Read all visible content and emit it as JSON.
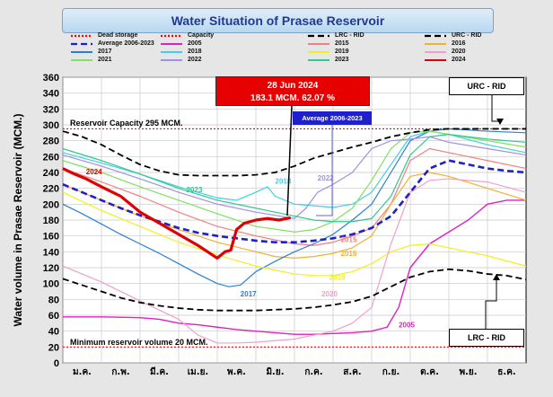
{
  "chart_data": {
    "type": "line",
    "title": "Water Situation of Prasae Reservoir",
    "ylabel": "Water volume in Prasae Reservoir (MCM.)",
    "xlabel": "",
    "ylim": [
      0,
      360
    ],
    "yticks": [
      0,
      20,
      40,
      60,
      80,
      100,
      120,
      140,
      160,
      180,
      200,
      220,
      240,
      260,
      280,
      300,
      320,
      340,
      360
    ],
    "categories": [
      "ม.ค.",
      "ก.พ.",
      "มี.ค.",
      "เม.ย.",
      "พ.ค.",
      "มิ.ย.",
      "ก.ค.",
      "ส.ค.",
      "ก.ย.",
      "ต.ค.",
      "พ.ย.",
      "ธ.ค."
    ],
    "grid": true,
    "annotations": {
      "capacity_label": "Reservoir Capacity 295 MCM.",
      "min_label": "Minimum reservoir volume 20 MCM.",
      "callout_line1": "28 Jun 2024",
      "callout_line2": "183.1 MCM. 62.07 %",
      "avg_label": "Average 2006-2023",
      "urc_label": "URC - RID",
      "lrc_label": "LRC - RID"
    },
    "legend": [
      {
        "name": "Dead storage",
        "color": "#ff0000",
        "style": "dotted"
      },
      {
        "name": "Capacity",
        "color": "#ff0000",
        "style": "dotted"
      },
      {
        "name": "LRC - RID",
        "color": "#000000",
        "style": "dashed"
      },
      {
        "name": "URC - RID",
        "color": "#000000",
        "style": "dashed"
      },
      {
        "name": "Average 2006-2023",
        "color": "#1f1fcc",
        "style": "dashed"
      },
      {
        "name": "2005",
        "color": "#e020c0",
        "style": "solid"
      },
      {
        "name": "2015",
        "color": "#f08080",
        "style": "solid"
      },
      {
        "name": "2016",
        "color": "#f0b030",
        "style": "solid"
      },
      {
        "name": "2017",
        "color": "#2a7fd4",
        "style": "solid"
      },
      {
        "name": "2018",
        "color": "#40d0e0",
        "style": "solid"
      },
      {
        "name": "2019",
        "color": "#f0f020",
        "style": "solid"
      },
      {
        "name": "2020",
        "color": "#f0a0c8",
        "style": "solid"
      },
      {
        "name": "2021",
        "color": "#80e060",
        "style": "solid"
      },
      {
        "name": "2022",
        "color": "#a090e0",
        "style": "solid"
      },
      {
        "name": "2023",
        "color": "#30c890",
        "style": "solid"
      },
      {
        "name": "2024",
        "color": "#e00000",
        "style": "solid"
      }
    ],
    "series": [
      {
        "name": "Dead storage",
        "color": "#ff0000",
        "style": "dotted",
        "width": 1.2,
        "label": "",
        "x": [
          0,
          12
        ],
        "y": [
          20,
          20
        ]
      },
      {
        "name": "Capacity",
        "color": "#ff0000",
        "style": "dotted",
        "width": 1.2,
        "label": "",
        "x": [
          0,
          12
        ],
        "y": [
          295,
          295
        ]
      },
      {
        "name": "URC - RID",
        "color": "#000000",
        "style": "dashed",
        "width": 1.8,
        "label": "",
        "x": [
          0,
          0.5,
          1,
          1.5,
          2,
          2.5,
          3,
          3.5,
          4,
          4.5,
          5,
          5.5,
          6,
          6.5,
          7,
          7.5,
          8,
          8.5,
          9,
          9.5,
          10,
          10.5,
          11,
          11.5,
          12
        ],
        "y": [
          292,
          285,
          275,
          262,
          250,
          242,
          237,
          236,
          236,
          236,
          237,
          240,
          248,
          258,
          265,
          272,
          278,
          285,
          290,
          294,
          295,
          295,
          295,
          295,
          295
        ]
      },
      {
        "name": "LRC - RID",
        "color": "#000000",
        "style": "dashed",
        "width": 1.8,
        "label": "",
        "x": [
          0,
          0.5,
          1,
          1.5,
          2,
          2.5,
          3,
          3.5,
          4,
          4.5,
          5,
          5.5,
          6,
          6.5,
          7,
          7.5,
          8,
          8.5,
          9,
          9.5,
          10,
          10.5,
          11,
          11.5,
          12
        ],
        "y": [
          106,
          98,
          90,
          82,
          76,
          72,
          69,
          67,
          66,
          66,
          66,
          67,
          68,
          70,
          73,
          77,
          84,
          96,
          108,
          115,
          118,
          116,
          112,
          110,
          105
        ]
      },
      {
        "name": "Average 2006-2023",
        "color": "#1f1fcc",
        "style": "dashed",
        "width": 2.6,
        "label": "",
        "x": [
          0,
          0.5,
          1,
          1.5,
          2,
          2.5,
          3,
          3.5,
          4,
          4.5,
          5,
          5.5,
          6,
          6.5,
          7,
          7.5,
          8,
          8.5,
          9,
          9.5,
          10,
          10.5,
          11,
          11.5,
          12
        ],
        "y": [
          225,
          215,
          205,
          195,
          186,
          178,
          170,
          164,
          160,
          157,
          154,
          152,
          152,
          154,
          157,
          162,
          170,
          185,
          215,
          245,
          255,
          250,
          245,
          242,
          240
        ]
      },
      {
        "name": "2005",
        "color": "#e020c0",
        "style": "solid",
        "width": 1.4,
        "label": "2005",
        "lx": 8.7,
        "ly": 45,
        "x": [
          0,
          1,
          2,
          2.5,
          3,
          3.5,
          4,
          4.5,
          5,
          5.5,
          6,
          6.5,
          7,
          7.5,
          8,
          8.4,
          8.7,
          9,
          9.5,
          10,
          10.5,
          11,
          11.5,
          12
        ],
        "y": [
          58,
          58,
          57,
          55,
          50,
          48,
          45,
          42,
          40,
          38,
          36,
          36,
          37,
          38,
          40,
          45,
          70,
          120,
          150,
          165,
          180,
          200,
          205,
          205
        ]
      },
      {
        "name": "2015",
        "color": "#f08080",
        "style": "solid",
        "width": 1.2,
        "label": "2015",
        "lx": 7.2,
        "ly": 152,
        "x": [
          0,
          1,
          2,
          3,
          4,
          5,
          6,
          6.5,
          7,
          7.5,
          8,
          8.5,
          9,
          9.5,
          10,
          11,
          12
        ],
        "y": [
          245,
          228,
          210,
          190,
          172,
          160,
          150,
          148,
          152,
          160,
          170,
          200,
          255,
          270,
          265,
          255,
          245
        ]
      },
      {
        "name": "2016",
        "color": "#f0b030",
        "style": "solid",
        "width": 1.2,
        "label": "2016",
        "lx": 7.2,
        "ly": 135,
        "x": [
          0,
          1,
          2,
          3,
          4,
          5,
          5.5,
          6,
          6.5,
          7,
          7.5,
          8,
          8.5,
          9,
          9.5,
          10,
          11,
          12
        ],
        "y": [
          225,
          205,
          185,
          168,
          152,
          140,
          134,
          132,
          134,
          138,
          145,
          160,
          200,
          235,
          240,
          235,
          220,
          205
        ]
      },
      {
        "name": "2017",
        "color": "#2a7fd4",
        "style": "solid",
        "width": 1.2,
        "label": "2017",
        "lx": 4.6,
        "ly": 84,
        "x": [
          0,
          0.5,
          1,
          1.5,
          2,
          2.5,
          3,
          3.5,
          4,
          4.3,
          4.6,
          5,
          5.5,
          6,
          6.5,
          7,
          7.5,
          8,
          8.5,
          9,
          9.5,
          10,
          11,
          12
        ],
        "y": [
          200,
          188,
          175,
          162,
          150,
          138,
          125,
          112,
          100,
          96,
          98,
          115,
          128,
          140,
          150,
          162,
          180,
          200,
          240,
          280,
          292,
          295,
          292,
          290
        ]
      },
      {
        "name": "2018",
        "color": "#40d0e0",
        "style": "solid",
        "width": 1.2,
        "label": "2018",
        "lx": 5.5,
        "ly": 226,
        "x": [
          0,
          1,
          2,
          3,
          4,
          4.5,
          5,
          5.3,
          5.5,
          6,
          6.5,
          7,
          7.5,
          8,
          8.5,
          9,
          9.5,
          10,
          11,
          12
        ],
        "y": [
          265,
          252,
          238,
          222,
          208,
          205,
          215,
          222,
          210,
          200,
          198,
          196,
          200,
          215,
          250,
          285,
          292,
          288,
          275,
          265
        ]
      },
      {
        "name": "2019",
        "color": "#f0f020",
        "style": "solid",
        "width": 1.2,
        "label": "2019",
        "lx": 6.9,
        "ly": 105,
        "x": [
          0,
          1,
          2,
          3,
          4,
          5,
          6,
          6.5,
          7,
          7.5,
          8,
          8.5,
          9,
          9.5,
          10,
          11,
          12
        ],
        "y": [
          215,
          192,
          172,
          152,
          136,
          122,
          112,
          110,
          110,
          115,
          125,
          140,
          148,
          150,
          145,
          135,
          122
        ]
      },
      {
        "name": "2020",
        "color": "#f0a0c8",
        "style": "solid",
        "width": 1.2,
        "label": "2020",
        "lx": 6.7,
        "ly": 84,
        "x": [
          0,
          1,
          2,
          3,
          3.5,
          4,
          4.5,
          5,
          5.5,
          6,
          6.5,
          7,
          7.5,
          8,
          8.5,
          9,
          9.5,
          10,
          11,
          12
        ],
        "y": [
          122,
          102,
          78,
          55,
          35,
          25,
          25,
          26,
          28,
          30,
          35,
          40,
          50,
          70,
          150,
          215,
          230,
          232,
          228,
          215
        ]
      },
      {
        "name": "2021",
        "color": "#80e060",
        "style": "solid",
        "width": 1.2,
        "label": "",
        "lx": 0,
        "ly": 0,
        "x": [
          0,
          1,
          2,
          3,
          4,
          5,
          6,
          6.5,
          7,
          7.5,
          8,
          8.5,
          9,
          9.5,
          10,
          11,
          12
        ],
        "y": [
          255,
          240,
          222,
          205,
          188,
          172,
          165,
          168,
          178,
          195,
          230,
          270,
          290,
          292,
          288,
          280,
          272
        ]
      },
      {
        "name": "2022",
        "color": "#a090e0",
        "style": "solid",
        "width": 1.2,
        "label": "2022",
        "lx": 6.6,
        "ly": 230,
        "x": [
          0,
          1,
          2,
          3,
          4,
          5,
          5.5,
          6,
          6.3,
          6.6,
          7,
          7.5,
          8,
          8.5,
          9,
          9.5,
          10,
          11,
          12
        ],
        "y": [
          262,
          248,
          232,
          215,
          200,
          190,
          186,
          182,
          195,
          215,
          225,
          240,
          270,
          280,
          282,
          285,
          278,
          270,
          262
        ]
      },
      {
        "name": "2023",
        "color": "#30c890",
        "style": "solid",
        "width": 1.2,
        "label": "2023",
        "lx": 3.2,
        "ly": 215,
        "x": [
          0,
          1,
          2,
          3,
          4,
          5,
          5.5,
          6,
          6.5,
          7,
          7.5,
          8,
          8.5,
          9,
          9.5,
          10,
          11,
          12
        ],
        "y": [
          270,
          255,
          238,
          220,
          205,
          195,
          190,
          185,
          180,
          178,
          178,
          182,
          210,
          262,
          285,
          288,
          282,
          278
        ]
      },
      {
        "name": "2024",
        "color": "#e00000",
        "style": "solid",
        "width": 3.2,
        "label": "2024",
        "lx": 0.6,
        "ly": 238,
        "x": [
          0,
          0.3,
          0.6,
          1,
          1.5,
          2,
          2.5,
          3,
          3.5,
          4,
          4.2,
          4.35,
          4.5,
          4.7,
          5,
          5.3,
          5.6,
          5.9
        ],
        "y": [
          245,
          238,
          232,
          222,
          210,
          190,
          176,
          162,
          148,
          132,
          140,
          142,
          168,
          176,
          180,
          182,
          180,
          183.1
        ]
      }
    ]
  }
}
